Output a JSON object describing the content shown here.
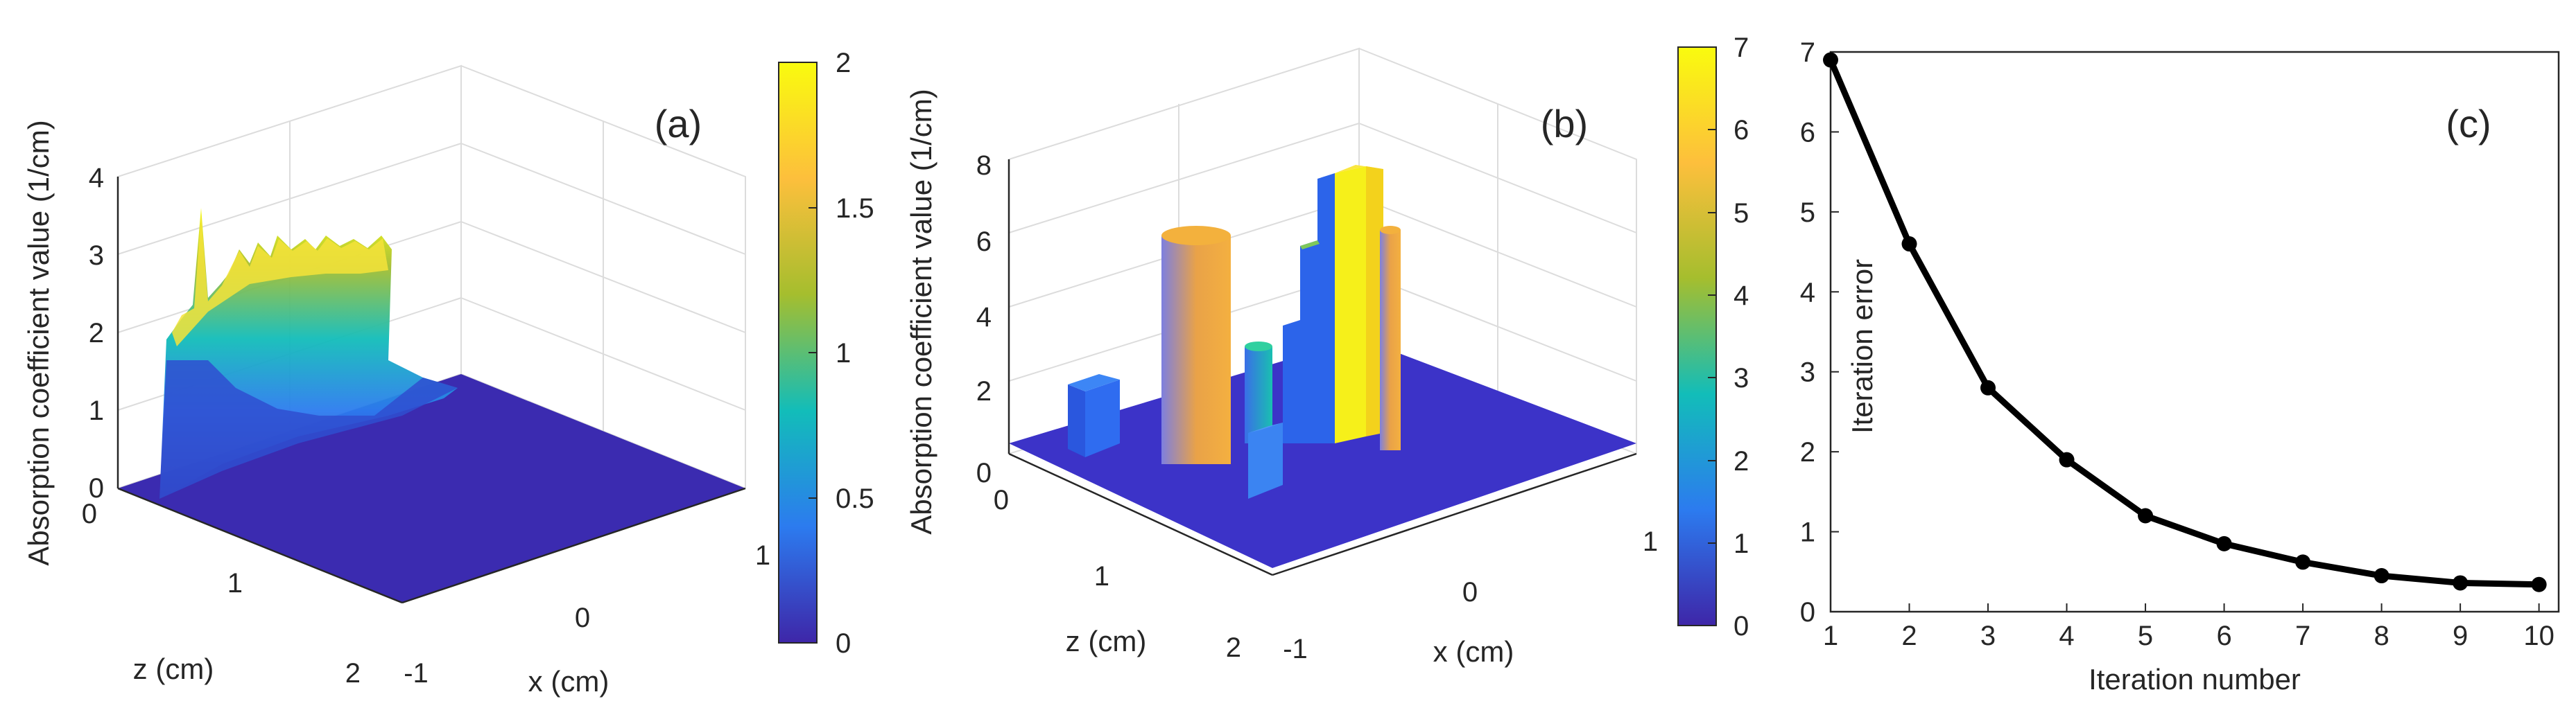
{
  "chart_data": [
    {
      "panel": "(a)",
      "type": "surface3d",
      "zlabel": "Absorption coefficient value (1/cm)",
      "xlabel": "x (cm)",
      "ylabel": "z (cm)",
      "xticks": [
        "-1",
        "0",
        "1"
      ],
      "yticks": [
        "0",
        "1",
        "2"
      ],
      "zticks": [
        "0",
        "1",
        "2",
        "3",
        "4"
      ],
      "zlim": [
        0,
        4
      ],
      "colorbar": {
        "ticks": [
          "0",
          "0.5",
          "1",
          "1.5",
          "2"
        ],
        "range": [
          0,
          2
        ]
      },
      "colors": [
        "#3e26a8",
        "#2c7bef",
        "#12bdb9",
        "#a5be2e",
        "#fdbf3c",
        "#f9fb0e"
      ]
    },
    {
      "panel": "(b)",
      "type": "surface3d",
      "zlabel": "Absorption coefficient value (1/cm)",
      "xlabel": "x (cm)",
      "ylabel": "z (cm)",
      "xticks": [
        "-1",
        "0",
        "1"
      ],
      "yticks": [
        "0",
        "1",
        "2"
      ],
      "zticks": [
        "0",
        "2",
        "4",
        "6",
        "8"
      ],
      "zlim": [
        0,
        8
      ],
      "colorbar": {
        "ticks": [
          "0",
          "1",
          "2",
          "3",
          "4",
          "5",
          "6",
          "7"
        ],
        "range": [
          0,
          7
        ]
      },
      "colors": [
        "#3e26a8",
        "#2c7bef",
        "#12bdb9",
        "#a5be2e",
        "#fdbf3c",
        "#f9fb0e"
      ]
    },
    {
      "panel": "(c)",
      "type": "line",
      "xlabel": "Iteration number",
      "ylabel": "Iteration error",
      "x": [
        1,
        2,
        3,
        4,
        5,
        6,
        7,
        8,
        9,
        10
      ],
      "y": [
        6.9,
        4.6,
        2.8,
        1.9,
        1.2,
        0.85,
        0.62,
        0.45,
        0.36,
        0.34
      ],
      "xticks": [
        "1",
        "2",
        "3",
        "4",
        "5",
        "6",
        "7",
        "8",
        "9",
        "10"
      ],
      "yticks": [
        "0",
        "1",
        "2",
        "3",
        "4",
        "5",
        "6",
        "7"
      ],
      "xlim": [
        1,
        10.25
      ],
      "ylim": [
        0,
        7
      ],
      "line_color": "#000000"
    }
  ]
}
